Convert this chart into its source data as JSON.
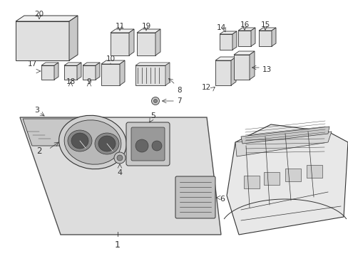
{
  "bg_color": "#ffffff",
  "line_color": "#333333",
  "label_color": "#111111",
  "fig_width": 4.89,
  "fig_height": 3.6,
  "dpi": 100,
  "panel_bg": "#e0e0e0",
  "dash_bg": "#f0f0f0"
}
